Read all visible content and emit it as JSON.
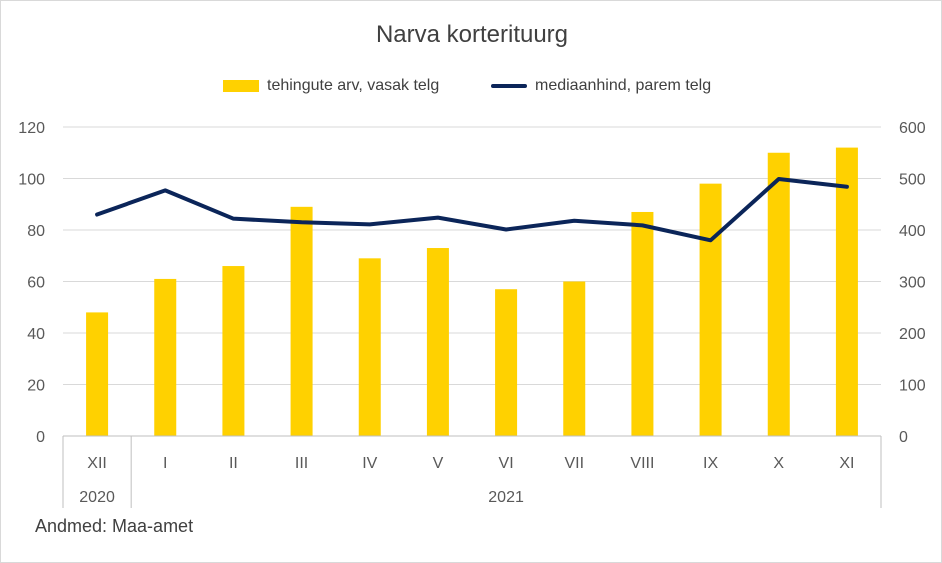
{
  "chart_data": {
    "type": "bar",
    "title": "Narva korterituurg",
    "categories": [
      "XII",
      "I",
      "II",
      "III",
      "IV",
      "V",
      "VI",
      "VII",
      "VIII",
      "IX",
      "X",
      "XI"
    ],
    "year_groups": [
      {
        "label": "2020",
        "count": 1
      },
      {
        "label": "2021",
        "count": 11
      }
    ],
    "series": [
      {
        "name": "tehingute arv, vasak telg",
        "type": "bar",
        "axis": "left",
        "color": "#FFD100",
        "values": [
          48,
          61,
          66,
          89,
          69,
          73,
          57,
          60,
          87,
          98,
          110,
          112
        ]
      },
      {
        "name": "mediaanhind, parem telg",
        "type": "line",
        "axis": "right",
        "color": "#0B2559",
        "values": [
          430,
          477,
          422,
          415,
          411,
          424,
          401,
          418,
          409,
          380,
          499,
          484
        ]
      }
    ],
    "left_axis": {
      "min": 0,
      "max": 120,
      "ticks": [
        "0",
        "20",
        "40",
        "60",
        "80",
        "100",
        "120"
      ]
    },
    "right_axis": {
      "min": 0,
      "max": 600,
      "ticks": [
        "0",
        "100",
        "200",
        "300",
        "400",
        "500",
        "600"
      ]
    },
    "grid": true,
    "legend_position": "top"
  },
  "source": "Andmed: Maa-amet"
}
